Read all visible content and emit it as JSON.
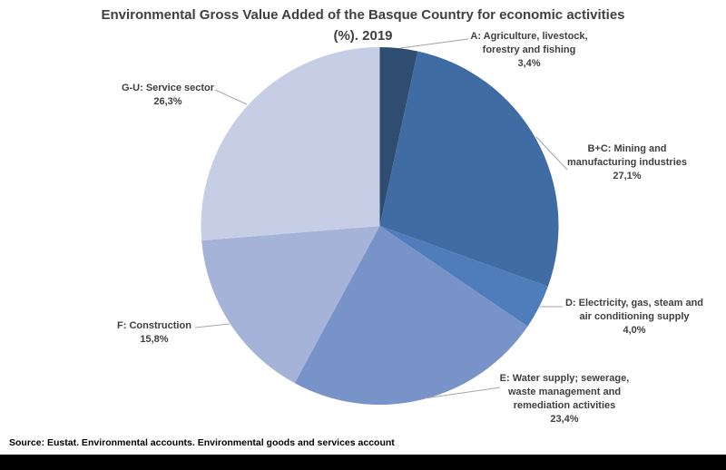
{
  "title": {
    "line1": "Environmental Gross Value Added of the Basque Country for economic activities",
    "line2": "(%). 2019"
  },
  "footer": {
    "source": "Source: Eustat. Environmental accounts. Environmental goods and services account"
  },
  "colors": {
    "title_text": "#404040",
    "label_text": "#404040",
    "leader_line": "#A6A6A6",
    "bottom_bar": "#000000",
    "background": "#FFFFFF"
  },
  "chart_data": {
    "type": "pie",
    "title": "Environmental Gross Value Added of the Basque Country for economic activities (%). 2019",
    "unit": "percent",
    "start_angle_deg": 0,
    "direction": "clockwise",
    "legend_position": "outside-callout-labels",
    "total": 100.0,
    "slices": [
      {
        "id": "A",
        "label": "A: Agriculture, livestock, forestry and fishing",
        "label_lines": [
          "A: Agriculture, livestock,",
          "forestry and fishing"
        ],
        "value": 3.4,
        "value_label": "3,4%",
        "color": "#2E4D71"
      },
      {
        "id": "B+C",
        "label": "B+C: Mining and manufacturing industries",
        "label_lines": [
          "B+C: Mining and",
          "manufacturing industries"
        ],
        "value": 27.1,
        "value_label": "27,1%",
        "color": "#3E6CA3"
      },
      {
        "id": "D",
        "label": "D: Electricity, gas, steam and air conditioning supply",
        "label_lines": [
          "D: Electricity, gas, steam and",
          "air conditioning supply"
        ],
        "value": 4.0,
        "value_label": "4,0%",
        "color": "#4E7DB9"
      },
      {
        "id": "E",
        "label": "E: Water supply; sewerage, waste management and remediation activities",
        "label_lines": [
          "E: Water supply; sewerage,",
          "waste management and",
          "remediation activities"
        ],
        "value": 23.4,
        "value_label": "23,4%",
        "color": "#7793C8"
      },
      {
        "id": "F",
        "label": "F: Construction",
        "label_lines": [
          "F: Construction"
        ],
        "value": 15.8,
        "value_label": "15,8%",
        "color": "#A4B3D7"
      },
      {
        "id": "G-U",
        "label": "G-U: Service sector",
        "label_lines": [
          "G-U: Service sector"
        ],
        "value": 26.3,
        "value_label": "26,3%",
        "color": "#C5CEE4"
      }
    ]
  }
}
